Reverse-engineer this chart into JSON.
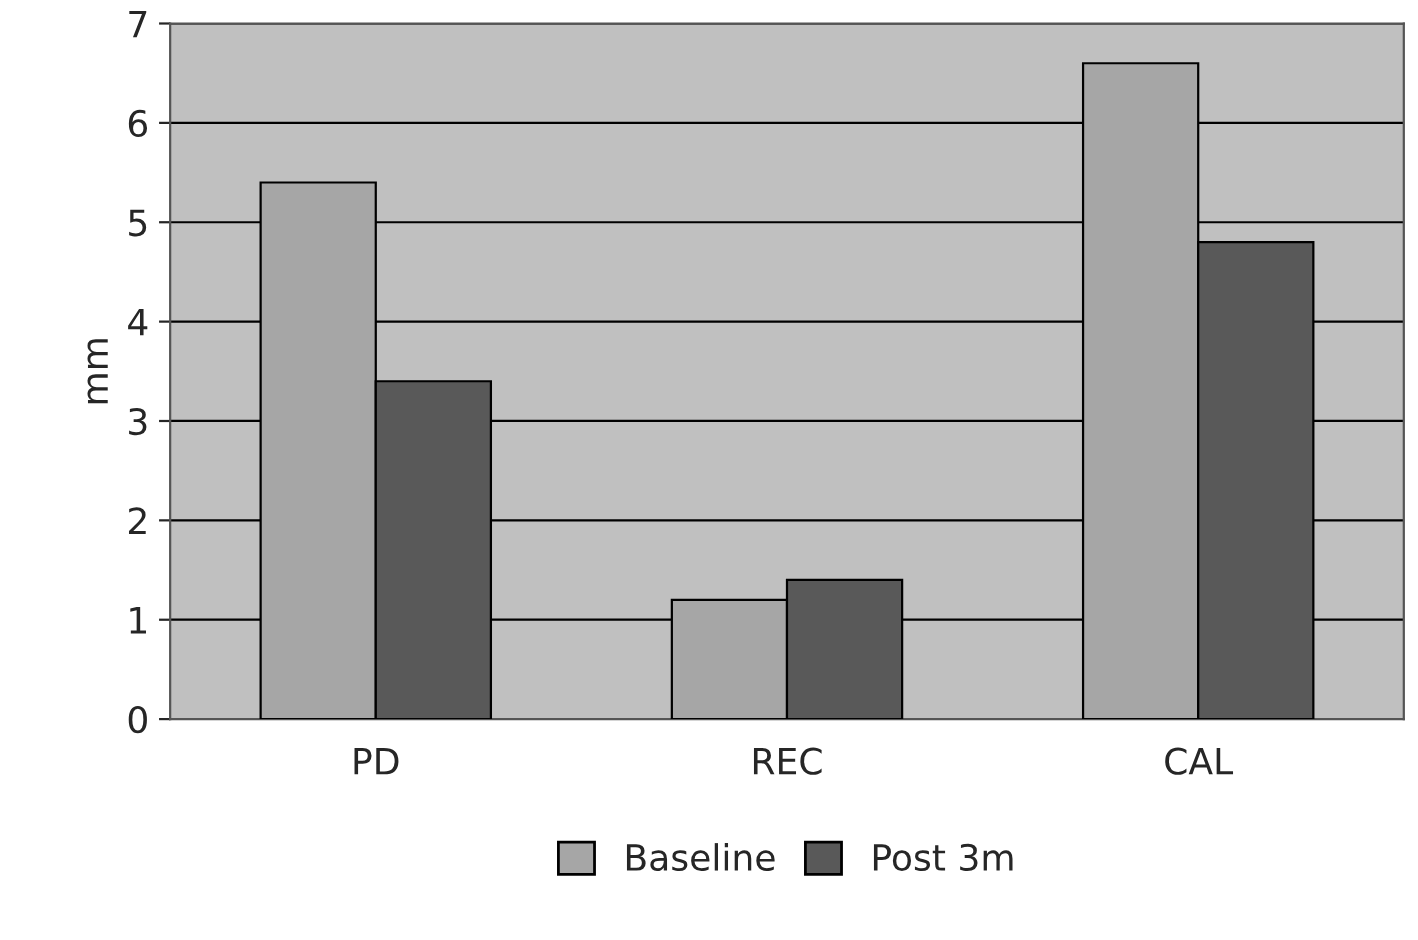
{
  "chart_data": {
    "type": "bar",
    "ylabel": "mm",
    "categories": [
      "PD",
      "REC",
      "CAL"
    ],
    "series": [
      {
        "name": "Baseline",
        "color": "#a6a6a6",
        "values": [
          5.4,
          1.2,
          6.6
        ]
      },
      {
        "name": "Post 3m",
        "color": "#595959",
        "values": [
          3.4,
          1.4,
          4.8
        ]
      }
    ],
    "ylim": [
      0,
      7
    ],
    "yticks": [
      0,
      1,
      2,
      3,
      4,
      5,
      6,
      7
    ],
    "grid": "y",
    "legend": "bottom"
  }
}
